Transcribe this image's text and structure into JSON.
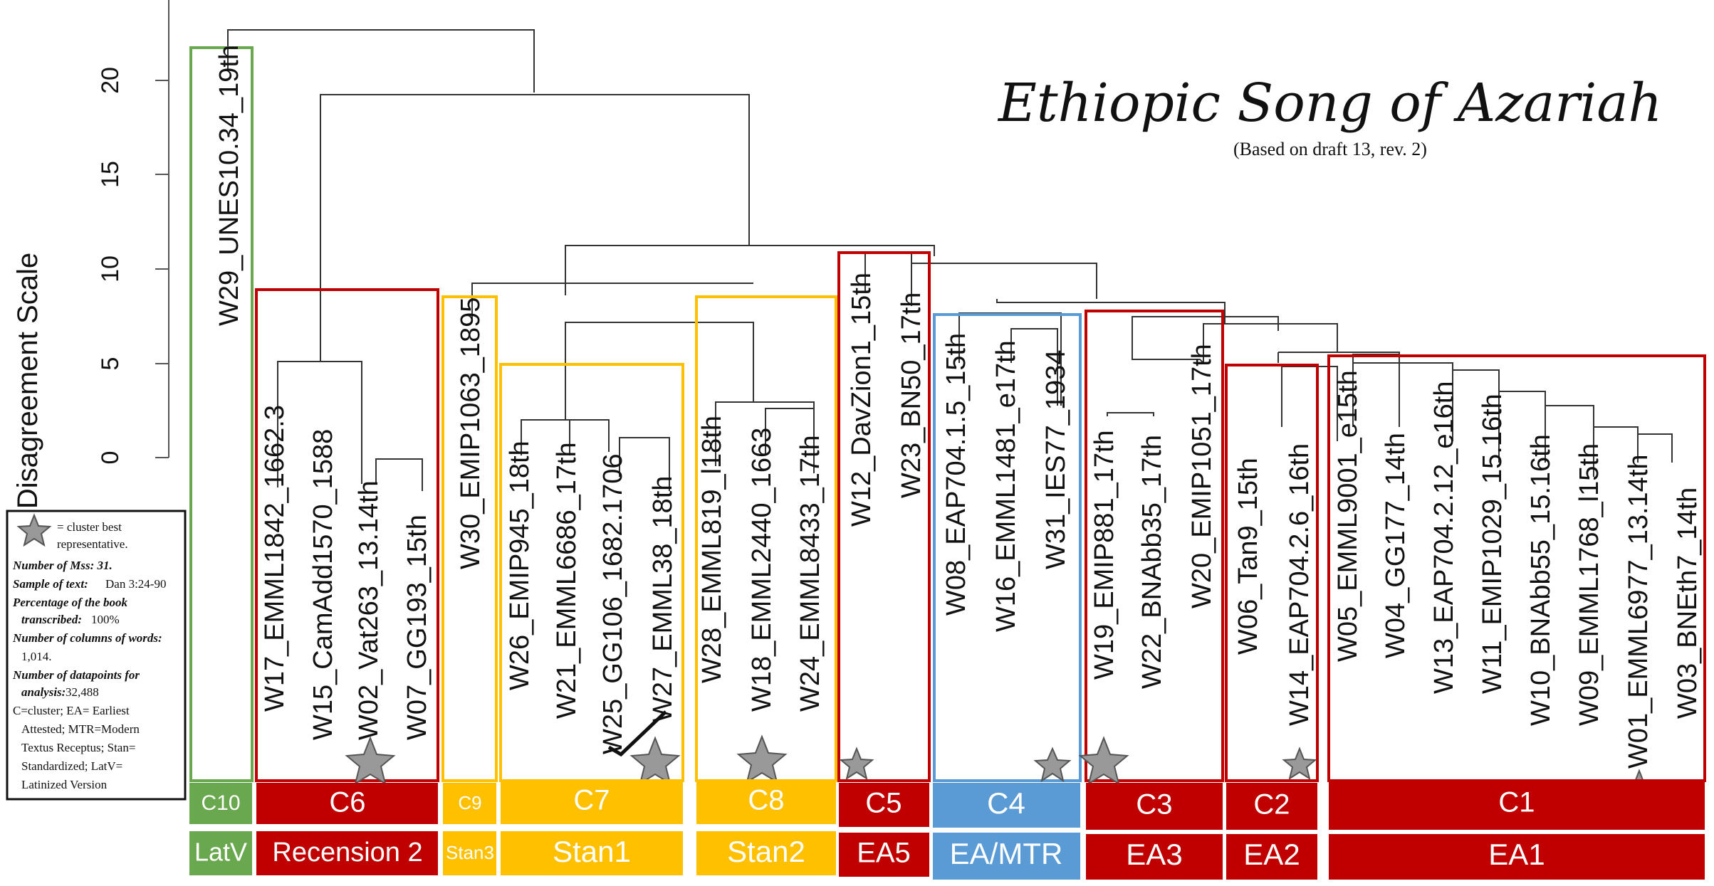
{
  "title": "Ethiopic Song of Azariah",
  "subtitle": "(Based on draft 13, rev. 2)",
  "axis": {
    "label": "Disagreement Scale",
    "ticks": [
      "0",
      "5",
      "10",
      "15",
      "20"
    ]
  },
  "legend": {
    "star_text_1": "= cluster best",
    "star_text_2": "representative.",
    "lines": [
      {
        "bold": "Number of Mss: 31.",
        "text": ""
      },
      {
        "bold": "Sample of text:",
        "text": " Dan 3:24-90"
      },
      {
        "bold": "Percentage of the book",
        "text": ""
      },
      {
        "bold": "transcribed:",
        "text": " 100%"
      },
      {
        "bold": "Number of columns of words:",
        "text": ""
      },
      {
        "bold": "",
        "text": "1,014."
      },
      {
        "bold": "Number of datapoints for",
        "text": ""
      },
      {
        "bold": "analysis:",
        "text": " 32,488"
      },
      {
        "bold": "",
        "text": "C=cluster; EA= Earliest"
      },
      {
        "bold": "",
        "text": "Attested; MTR=Modern"
      },
      {
        "bold": "",
        "text": "Textus Receptus; Stan="
      },
      {
        "bold": "",
        "text": "Standardized; LatV="
      },
      {
        "bold": "",
        "text": "Latinized Version"
      }
    ]
  },
  "leaves": [
    "W29_UNES10.34_19th",
    "W17_EMML1842_1662.3",
    "W15_CamAdd1570_1588",
    "W02_Vat263_13.14th",
    "W07_GG193_15th",
    "W30_EMIP1063_1895",
    "W26_EMIP945_18th",
    "W21_EMML6686_17th",
    "W25_GG106_1682.1706",
    "W27_EMML38_18th",
    "W28_EMML819_l18th",
    "W18_EMML2440_1663",
    "W24_EMML8433_17th",
    "W12_DavZion1_15th",
    "W23_BN50_17th",
    "W08_EAP704.1.5_15th",
    "W16_EMML1481_e17th",
    "W31_IES77_1934",
    "W19_EMIP881_17th",
    "W22_BNAbb35_17th",
    "W20_EMIP1051_17th",
    "W06_Tan9_15th",
    "W14_EAP704.2.6_16th",
    "W05_EMML9001_e15th",
    "W04_GG177_14th",
    "W13_EAP704.2.12_e16th",
    "W11_EMIP1029_15.16th",
    "W10_BNAbb55_15.16th",
    "W09_EMML1768_l15th",
    "W01_EMML6977_13.14th",
    "W03_BNEth7_14th"
  ],
  "clusters": [
    {
      "cluster": "C10",
      "group": "LatV",
      "color": "#6aa84f"
    },
    {
      "cluster": "C6",
      "group": "Recension 2",
      "color": "#c00000"
    },
    {
      "cluster": "C9",
      "group": "Stan3",
      "color": "#ffc000"
    },
    {
      "cluster": "C7",
      "group": "Stan1",
      "color": "#ffc000"
    },
    {
      "cluster": "C8",
      "group": "Stan2",
      "color": "#ffc000"
    },
    {
      "cluster": "C5",
      "group": "EA5",
      "color": "#c00000"
    },
    {
      "cluster": "C4",
      "group": "EA/MTR",
      "color": "#5b9bd5"
    },
    {
      "cluster": "C3",
      "group": "EA3",
      "color": "#c00000"
    },
    {
      "cluster": "C2",
      "group": "EA2",
      "color": "#c00000"
    },
    {
      "cluster": "C1",
      "group": "EA1",
      "color": "#c00000"
    }
  ],
  "colors": {
    "star": "#999999",
    "red": "#c00000",
    "yellow": "#ffc000",
    "blue": "#5b9bd5",
    "green": "#6aa84f"
  }
}
